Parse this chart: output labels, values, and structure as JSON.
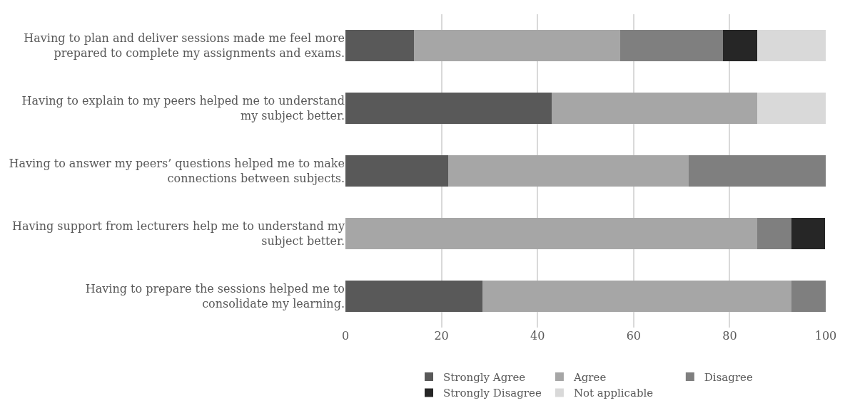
{
  "chart_data": {
    "type": "bar",
    "orientation": "horizontal",
    "stacked": true,
    "categories": [
      "Having to plan and deliver sessions made me feel more prepared to complete my assignments and exams.",
      "Having to explain to my peers helped me to understand my subject better.",
      "Having to answer my peers’ questions helped me to make connections between subjects.",
      "Having support from lecturers help me to understand my subject better.",
      "Having to prepare the sessions helped me to consolidate my learning."
    ],
    "series": [
      {
        "name": "Strongly Agree",
        "color": "#595959",
        "values": [
          14.3,
          42.9,
          21.4,
          null,
          28.6
        ]
      },
      {
        "name": "Agree",
        "color": "#a6a6a6",
        "values": [
          42.9,
          42.9,
          50.0,
          85.7,
          64.3
        ]
      },
      {
        "name": "Disagree",
        "color": "#7f7f7f",
        "values": [
          21.4,
          null,
          28.6,
          7.1,
          7.1
        ]
      },
      {
        "name": "Strongly Disagree",
        "color": "#262626",
        "values": [
          7.1,
          null,
          null,
          7.1,
          null
        ]
      },
      {
        "name": "Not applicable",
        "color": "#d9d9d9",
        "values": [
          14.3,
          14.3,
          null,
          null,
          null
        ]
      }
    ],
    "xlim": [
      0,
      100
    ],
    "xticks": [
      0,
      20,
      40,
      60,
      80,
      100
    ],
    "grid": "x",
    "legend": "bottom"
  }
}
